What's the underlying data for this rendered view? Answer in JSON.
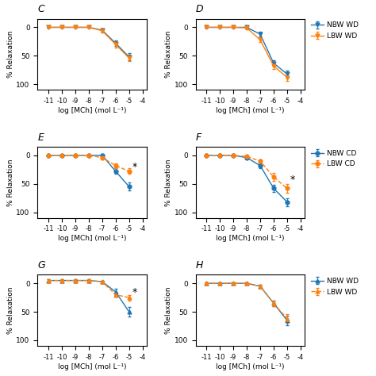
{
  "chart_data": [
    {
      "type": "line",
      "title": "C",
      "xlabel": "log [MCh] (mol L⁻¹)",
      "ylabel": "% Relaxation",
      "x": [
        -11,
        -10,
        -9,
        -8,
        -7,
        -6,
        -5
      ],
      "xlim": [
        -11.8,
        -3.7
      ],
      "xticks": [
        -11,
        -10,
        -9,
        -8,
        -7,
        -6,
        -5,
        -4
      ],
      "ylim": [
        110,
        -15
      ],
      "yticks": [
        0,
        50,
        100
      ],
      "series": [
        {
          "values": [
            0,
            0,
            0,
            0,
            5,
            28,
            52
          ],
          "yerr": [
            1,
            1,
            1,
            1,
            3,
            5,
            6
          ],
          "line_style": "solid",
          "marker": "triangle_down"
        },
        {
          "values": [
            0,
            0,
            0,
            0,
            6,
            30,
            54
          ],
          "yerr": [
            1,
            1,
            1,
            1,
            3,
            5,
            6
          ],
          "line_style": "solid",
          "marker": "triangle_down"
        }
      ]
    },
    {
      "type": "line",
      "title": "D",
      "xlabel": "log [MCh] (mol L⁻¹)",
      "ylabel": "% Relaxation",
      "x": [
        -11,
        -10,
        -9,
        -8,
        -7,
        -6,
        -5
      ],
      "xlim": [
        -11.8,
        -3.7
      ],
      "xticks": [
        -11,
        -10,
        -9,
        -8,
        -7,
        -6,
        -5,
        -4
      ],
      "ylim": [
        110,
        -15
      ],
      "yticks": [
        0,
        50,
        100
      ],
      "legend": "upper left",
      "series": [
        {
          "name": "NBW WD",
          "values": [
            0,
            0,
            0,
            0,
            12,
            63,
            82
          ],
          "yerr": [
            1,
            1,
            1,
            2,
            4,
            5,
            6
          ],
          "line_style": "solid",
          "marker": "triangle_down"
        },
        {
          "name": "LBW WD",
          "values": [
            0,
            0,
            0,
            1,
            22,
            68,
            88
          ],
          "yerr": [
            1,
            1,
            1,
            2,
            4,
            5,
            6
          ],
          "line_style": "solid",
          "marker": "triangle_down"
        }
      ]
    },
    {
      "type": "line",
      "title": "E",
      "xlabel": "log [MCh] (mol L⁻¹)",
      "ylabel": "% Relaxation",
      "x": [
        -11,
        -10,
        -9,
        -8,
        -7,
        -6,
        -5
      ],
      "xlim": [
        -11.8,
        -3.7
      ],
      "xticks": [
        -11,
        -10,
        -9,
        -8,
        -7,
        -6,
        -5,
        -4
      ],
      "ylim": [
        110,
        -15
      ],
      "yticks": [
        0,
        50,
        100
      ],
      "annotations": [
        {
          "text": "*",
          "x": -4.6,
          "y": 20
        }
      ],
      "series": [
        {
          "values": [
            0,
            0,
            0,
            0,
            0,
            28,
            55
          ],
          "yerr": [
            1,
            1,
            1,
            1,
            2,
            5,
            7
          ],
          "line_style": "solid",
          "marker": "circle"
        },
        {
          "values": [
            0,
            0,
            0,
            0,
            4,
            18,
            28
          ],
          "yerr": [
            1,
            1,
            1,
            1,
            2,
            4,
            5
          ],
          "line_style": "dashed",
          "marker": "circle"
        }
      ]
    },
    {
      "type": "line",
      "title": "F",
      "xlabel": "log [MCh] (mol L⁻¹)",
      "ylabel": "% Relaxation",
      "x": [
        -11,
        -10,
        -9,
        -8,
        -7,
        -6,
        -5
      ],
      "xlim": [
        -11.8,
        -3.7
      ],
      "xticks": [
        -11,
        -10,
        -9,
        -8,
        -7,
        -6,
        -5,
        -4
      ],
      "ylim": [
        110,
        -15
      ],
      "yticks": [
        0,
        50,
        100
      ],
      "legend": "upper left",
      "annotations": [
        {
          "text": "*",
          "x": -4.6,
          "y": 43
        }
      ],
      "series": [
        {
          "name": "NBW CD",
          "values": [
            0,
            0,
            0,
            4,
            18,
            58,
            82
          ],
          "yerr": [
            1,
            1,
            1,
            2,
            4,
            6,
            7
          ],
          "line_style": "solid",
          "marker": "circle"
        },
        {
          "name": "LBW CD",
          "values": [
            0,
            0,
            0,
            2,
            10,
            38,
            58
          ],
          "yerr": [
            1,
            1,
            1,
            2,
            3,
            7,
            8
          ],
          "line_style": "dashed",
          "marker": "circle"
        }
      ]
    },
    {
      "type": "line",
      "title": "G",
      "xlabel": "log [MCh] (mol L⁻¹)",
      "ylabel": "% Relaxation",
      "x": [
        -11,
        -10,
        -9,
        -8,
        -7,
        -6,
        -5
      ],
      "xlim": [
        -11.8,
        -3.7
      ],
      "xticks": [
        -11,
        -10,
        -9,
        -8,
        -7,
        -6,
        -5,
        -4
      ],
      "ylim": [
        110,
        -15
      ],
      "yticks": [
        0,
        50,
        100
      ],
      "annotations": [
        {
          "text": "*",
          "x": -4.6,
          "y": 16
        }
      ],
      "series": [
        {
          "values": [
            -5,
            -5,
            -5,
            -5,
            -3,
            15,
            50
          ],
          "yerr": [
            2,
            2,
            2,
            2,
            2,
            5,
            8
          ],
          "line_style": "solid",
          "marker": "triangle_up"
        },
        {
          "values": [
            -5,
            -5,
            -5,
            -5,
            -3,
            20,
            25
          ],
          "yerr": [
            2,
            2,
            2,
            2,
            2,
            4,
            5
          ],
          "line_style": "dashed",
          "marker": "triangle_up"
        }
      ]
    },
    {
      "type": "line",
      "title": "H",
      "xlabel": "log [MCh] (mol L⁻¹)",
      "ylabel": "% Relaxation",
      "x": [
        -11,
        -10,
        -9,
        -8,
        -7,
        -6,
        -5
      ],
      "xlim": [
        -11.8,
        -3.7
      ],
      "xticks": [
        -11,
        -10,
        -9,
        -8,
        -7,
        -6,
        -5,
        -4
      ],
      "ylim": [
        110,
        -15
      ],
      "yticks": [
        0,
        50,
        100
      ],
      "legend": "upper left",
      "series": [
        {
          "name": "NBW WD",
          "values": [
            0,
            0,
            0,
            0,
            5,
            35,
            65
          ],
          "yerr": [
            1,
            1,
            1,
            1,
            3,
            5,
            8
          ],
          "line_style": "solid",
          "marker": "triangle_up"
        },
        {
          "name": "LBW WD",
          "values": [
            0,
            0,
            0,
            0,
            5,
            35,
            62
          ],
          "yerr": [
            1,
            1,
            1,
            1,
            3,
            5,
            8
          ],
          "line_style": "dashed",
          "marker": "triangle_up"
        }
      ]
    }
  ]
}
